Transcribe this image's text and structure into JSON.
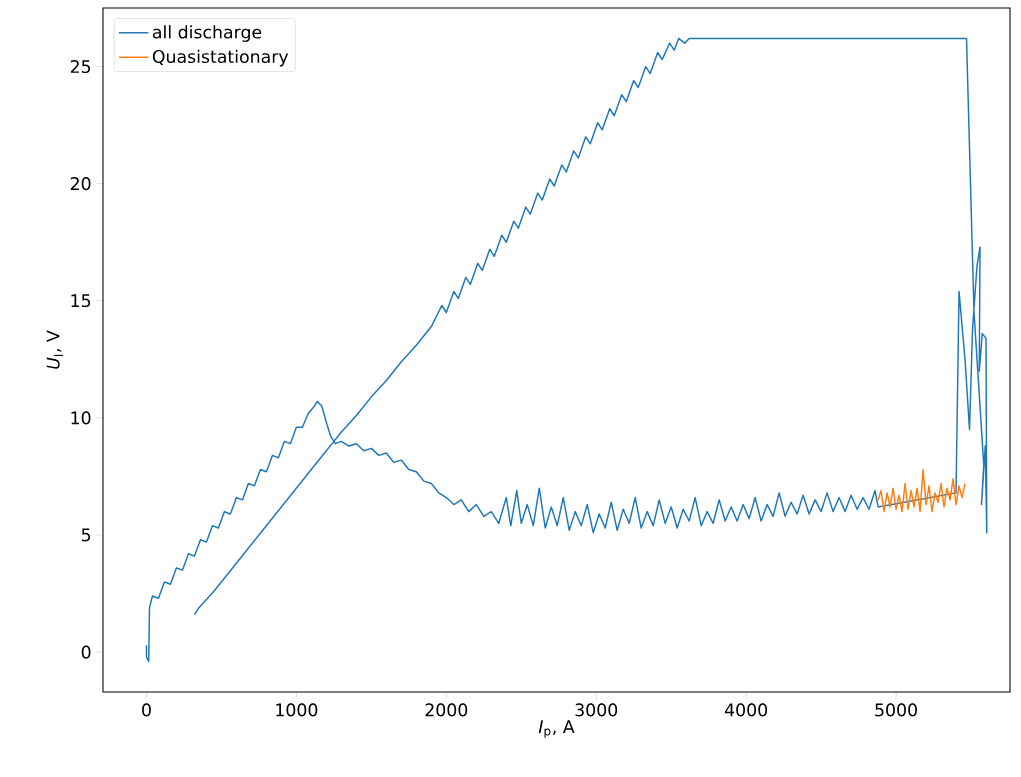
{
  "chart_data": {
    "type": "line",
    "xlabel": "*I*$_{p}$, A",
    "ylabel": "*U*$_{l}$, V",
    "xlim": [
      -290,
      5760
    ],
    "ylim": [
      -1.7,
      27.5
    ],
    "xticks": [
      0,
      1000,
      2000,
      3000,
      4000,
      5000
    ],
    "yticks": [
      0,
      5,
      10,
      15,
      20,
      25
    ],
    "legend": "top left",
    "series": [
      {
        "name": "all discharge",
        "color": "#1f77b4",
        "x": [
          0,
          0,
          15,
          20,
          40,
          80,
          120,
          160,
          200,
          240,
          280,
          320,
          360,
          400,
          440,
          480,
          520,
          560,
          600,
          640,
          680,
          720,
          760,
          800,
          840,
          880,
          920,
          960,
          1000,
          1040,
          1080,
          1120,
          1140,
          1170,
          1200,
          1230,
          1260,
          1300,
          1350,
          1400,
          1450,
          1500,
          1550,
          1600,
          1650,
          1700,
          1750,
          1800,
          1850,
          1900,
          1950,
          2000,
          2050,
          2100,
          2150,
          2200,
          2250,
          2300,
          2350,
          2400,
          2430,
          2470,
          2500,
          2540,
          2580,
          2620,
          2660,
          2700,
          2740,
          2780,
          2820,
          2860,
          2900,
          2940,
          2980,
          3020,
          3060,
          3100,
          3140,
          3180,
          3220,
          3260,
          3300,
          3340,
          3380,
          3420,
          3460,
          3500,
          3540,
          3580,
          3620,
          3660,
          3700,
          3740,
          3780,
          3820,
          3860,
          3900,
          3940,
          3980,
          4020,
          4060,
          4100,
          4140,
          4180,
          4220,
          4260,
          4300,
          4340,
          4380,
          4420,
          4460,
          4500,
          4540,
          4580,
          4620,
          4660,
          4700,
          4740,
          4780,
          4820,
          4860,
          4880,
          5400,
          5420,
          5460,
          5490,
          5510,
          5540,
          5560,
          5555,
          5575,
          5600,
          5605,
          5595,
          5570,
          5585,
          5520,
          5470,
          3620,
          3590,
          3550,
          3520,
          3490,
          3440,
          3410,
          3360,
          3330,
          3280,
          3250,
          3200,
          3170,
          3120,
          3090,
          3040,
          3010,
          2960,
          2930,
          2880,
          2850,
          2800,
          2770,
          2720,
          2690,
          2640,
          2610,
          2560,
          2530,
          2480,
          2450,
          2400,
          2370,
          2320,
          2290,
          2240,
          2210,
          2160,
          2130,
          2080,
          2050,
          2000,
          1970,
          1900,
          1800,
          1700,
          1600,
          1500,
          1400,
          1300,
          1250,
          1150,
          1050,
          950,
          850,
          750,
          650,
          550,
          450,
          350,
          320
        ],
        "values": [
          0.3,
          -0.2,
          -0.4,
          1.9,
          2.4,
          2.3,
          3.0,
          2.9,
          3.6,
          3.5,
          4.2,
          4.1,
          4.8,
          4.7,
          5.4,
          5.3,
          6.0,
          5.9,
          6.6,
          6.5,
          7.2,
          7.1,
          7.8,
          7.7,
          8.4,
          8.3,
          9.0,
          8.9,
          9.6,
          9.6,
          10.2,
          10.5,
          10.7,
          10.5,
          9.8,
          9.2,
          8.9,
          9.0,
          8.8,
          8.9,
          8.6,
          8.7,
          8.4,
          8.5,
          8.1,
          8.2,
          7.8,
          7.7,
          7.3,
          7.2,
          6.8,
          6.6,
          6.3,
          6.5,
          6.0,
          6.3,
          5.8,
          6.0,
          5.5,
          6.6,
          5.4,
          6.9,
          5.5,
          6.3,
          5.4,
          7.0,
          5.3,
          6.2,
          5.4,
          6.6,
          5.2,
          6.0,
          5.4,
          6.3,
          5.1,
          5.9,
          5.3,
          6.4,
          5.2,
          6.1,
          5.5,
          6.6,
          5.3,
          6.0,
          5.4,
          6.5,
          5.5,
          6.2,
          5.3,
          6.1,
          5.6,
          6.6,
          5.4,
          6.0,
          5.5,
          6.5,
          5.6,
          6.2,
          5.6,
          6.3,
          5.7,
          6.6,
          5.6,
          6.3,
          5.8,
          6.8,
          5.8,
          6.4,
          5.9,
          6.7,
          5.9,
          6.5,
          6.0,
          6.8,
          6.0,
          6.6,
          6.0,
          6.7,
          6.1,
          6.6,
          6.1,
          6.9,
          6.2,
          6.8,
          15.4,
          12.5,
          9.5,
          13.8,
          16.5,
          17.3,
          12.0,
          13.6,
          13.4,
          5.1,
          8.8,
          6.3,
          8.0,
          14.5,
          26.2,
          26.2,
          26.0,
          26.2,
          25.7,
          26.0,
          25.3,
          25.6,
          24.7,
          25.0,
          24.1,
          24.4,
          23.5,
          23.8,
          22.9,
          23.2,
          22.3,
          22.6,
          21.7,
          22.0,
          21.1,
          21.4,
          20.5,
          20.8,
          19.9,
          20.2,
          19.3,
          19.6,
          18.7,
          19.0,
          18.1,
          18.4,
          17.5,
          17.8,
          16.9,
          17.2,
          16.3,
          16.6,
          15.7,
          16.0,
          15.1,
          15.4,
          14.5,
          14.8,
          13.9,
          13.1,
          12.4,
          11.6,
          10.9,
          10.1,
          9.4,
          9.0,
          8.2,
          7.4,
          6.6,
          5.8,
          5.0,
          4.2,
          3.4,
          2.6,
          1.9,
          1.6
        ]
      },
      {
        "name": "Quasistationary",
        "color": "#ff7f0e",
        "x": [
          4880,
          4900,
          4920,
          4940,
          4960,
          4980,
          5000,
          5020,
          5040,
          5060,
          5080,
          5100,
          5120,
          5140,
          5160,
          5180,
          5200,
          5220,
          5240,
          5260,
          5280,
          5300,
          5320,
          5340,
          5360,
          5380,
          5400,
          5420,
          5440,
          5460
        ],
        "values": [
          6.5,
          6.9,
          6.0,
          6.8,
          6.2,
          7.0,
          6.1,
          6.7,
          6.0,
          7.2,
          6.1,
          6.9,
          6.2,
          7.0,
          6.0,
          7.8,
          6.3,
          7.1,
          6.0,
          6.8,
          6.4,
          7.2,
          6.2,
          7.0,
          6.5,
          7.4,
          6.3,
          7.1,
          6.6,
          7.2
        ]
      }
    ]
  }
}
